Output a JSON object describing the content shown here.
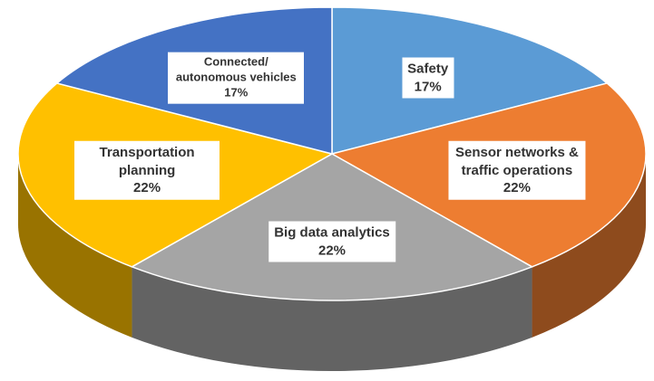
{
  "chart_data": {
    "type": "pie3d",
    "categories": [
      "Safety",
      "Sensor networks & traffic operations",
      "Big data analytics",
      "Transportation planning",
      "Connected/ autonomous vehicles"
    ],
    "values": [
      17,
      22,
      22,
      22,
      17
    ],
    "value_labels": [
      "17%",
      "22%",
      "22%",
      "22%",
      "17%"
    ],
    "colors": [
      "#5b9bd5",
      "#ed7d31",
      "#a5a5a5",
      "#ffc000",
      "#4472c4"
    ]
  }
}
